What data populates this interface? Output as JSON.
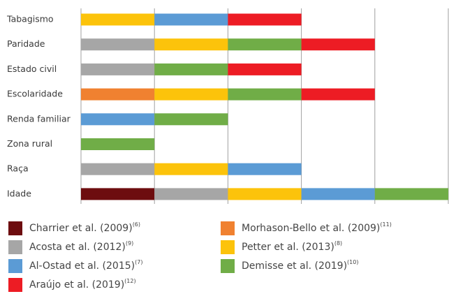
{
  "chart_data": {
    "type": "stacked_bar_horizontal",
    "categories": [
      "Tabagismo",
      "Paridade",
      "Estado civil",
      "Escolaridade",
      "Renda familiar",
      "Zona rural",
      "Raça",
      "Idade"
    ],
    "series": [
      {
        "name": "Charrier et al. (2009)",
        "ref": "(6)",
        "color": "#6d0d0f",
        "values": [
          0,
          0,
          0,
          0,
          0,
          0,
          0,
          1
        ]
      },
      {
        "name": "Morhason-Bello et al. (2009)",
        "ref": "(11)",
        "color": "#f08130",
        "values": [
          0,
          0,
          0,
          1,
          0,
          0,
          0,
          0
        ]
      },
      {
        "name": "Acosta et al. (2012)",
        "ref": "(9)",
        "color": "#a6a6a6",
        "values": [
          0,
          1,
          1,
          0,
          0,
          0,
          1,
          1
        ]
      },
      {
        "name": "Petter et al. (2013)",
        "ref": "(8)",
        "color": "#fcc30b",
        "values": [
          1,
          1,
          0,
          1,
          0,
          0,
          1,
          1
        ]
      },
      {
        "name": "Al-Ostad et al. (2015)",
        "ref": "(7)",
        "color": "#5b9bd5",
        "values": [
          1,
          0,
          0,
          0,
          1,
          0,
          1,
          1
        ]
      },
      {
        "name": "Demisse et al. (2019)",
        "ref": "(10)",
        "color": "#70ad47",
        "values": [
          0,
          1,
          1,
          1,
          1,
          1,
          0,
          1
        ]
      },
      {
        "name": "Araújo et al. (2019)",
        "ref": "(12)",
        "color": "#ed1c24",
        "values": [
          1,
          1,
          1,
          1,
          0,
          0,
          0,
          0
        ]
      }
    ],
    "xlim": [
      0,
      5
    ],
    "xticks": [
      0,
      1,
      2,
      3,
      4,
      5
    ],
    "grid": true
  }
}
